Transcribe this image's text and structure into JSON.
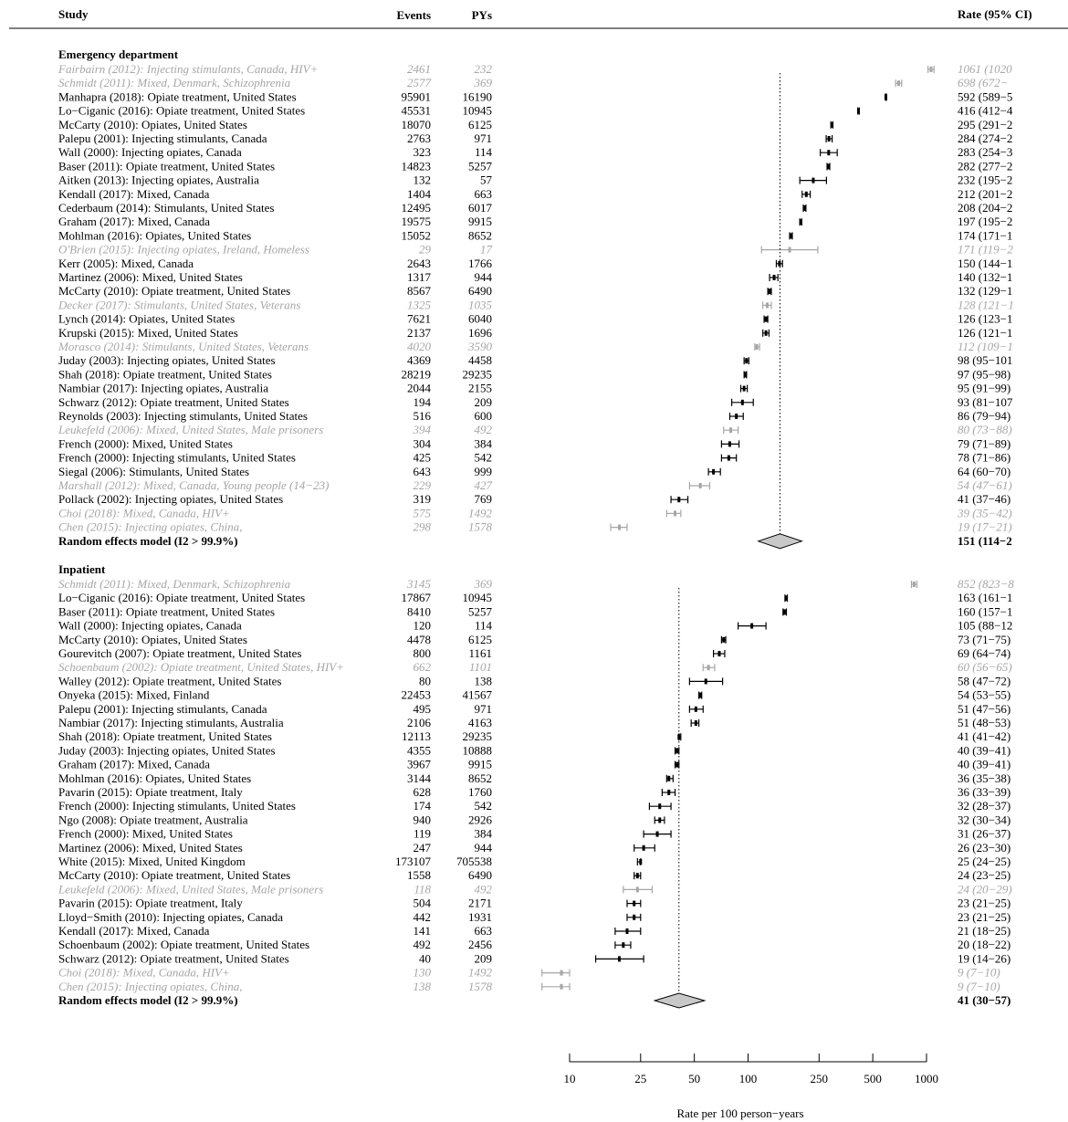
{
  "header": {
    "study": "Study",
    "events": "Events",
    "pys": "PYs",
    "rate": "Rate (95% CI)"
  },
  "chart_data": {
    "type": "forest",
    "xscale": "log",
    "xlim": [
      10,
      1000
    ],
    "xticks": [
      10,
      25,
      50,
      100,
      250,
      500,
      1000
    ],
    "xlabel": "Rate per 100 person−years",
    "colors": {
      "included": "#000000",
      "excluded": "#a6a6a6",
      "diamond_fill": "#c8c8c8"
    },
    "sections": [
      {
        "title": "Emergency department",
        "pooled_ref_line": 151,
        "studies": [
          {
            "label": "Fairbairn (2012): Injecting stimulants, Canada, HIV+",
            "events": "2461",
            "pys": "232",
            "rate": 1061,
            "lo": 1020,
            "hi": 1102,
            "text": "1061 (1020",
            "grey": true
          },
          {
            "label": "Schmidt (2011): Mixed, Denmark, Schizophrenia",
            "events": "2577",
            "pys": "369",
            "rate": 698,
            "lo": 672,
            "hi": 726,
            "text": "698 (672−",
            "grey": true
          },
          {
            "label": "Manhapra (2018): Opiate treatment, United States",
            "events": "95901",
            "pys": "16190",
            "rate": 592,
            "lo": 589,
            "hi": 596,
            "text": "592 (589−5",
            "grey": false
          },
          {
            "label": "Lo−Ciganic (2016): Opiate treatment, United States",
            "events": "45531",
            "pys": "10945",
            "rate": 416,
            "lo": 412,
            "hi": 420,
            "text": "416 (412−4",
            "grey": false
          },
          {
            "label": "McCarty (2010): Opiates, United States",
            "events": "18070",
            "pys": "6125",
            "rate": 295,
            "lo": 291,
            "hi": 299,
            "text": "295 (291−2",
            "grey": false
          },
          {
            "label": "Palepu (2001): Injecting stimulants, Canada",
            "events": "2763",
            "pys": "971",
            "rate": 284,
            "lo": 274,
            "hi": 296,
            "text": "284 (274−2",
            "grey": false
          },
          {
            "label": "Wall (2000): Injecting opiates, Canada",
            "events": "323",
            "pys": "114",
            "rate": 283,
            "lo": 254,
            "hi": 316,
            "text": "283 (254−3",
            "grey": false
          },
          {
            "label": "Baser (2011): Opiate treatment, United States",
            "events": "14823",
            "pys": "5257",
            "rate": 282,
            "lo": 277,
            "hi": 287,
            "text": "282 (277−2",
            "grey": false
          },
          {
            "label": "Aitken (2013): Injecting opiates, Australia",
            "events": "132",
            "pys": "57",
            "rate": 232,
            "lo": 195,
            "hi": 275,
            "text": "232 (195−2",
            "grey": false
          },
          {
            "label": "Kendall (2017): Mixed, Canada",
            "events": "1404",
            "pys": "663",
            "rate": 212,
            "lo": 201,
            "hi": 223,
            "text": "212 (201−2",
            "grey": false
          },
          {
            "label": "Cederbaum (2014): Stimulants, United States",
            "events": "12495",
            "pys": "6017",
            "rate": 208,
            "lo": 204,
            "hi": 211,
            "text": "208 (204−2",
            "grey": false
          },
          {
            "label": "Graham (2017): Mixed, Canada",
            "events": "19575",
            "pys": "9915",
            "rate": 197,
            "lo": 195,
            "hi": 200,
            "text": "197 (195−2",
            "grey": false
          },
          {
            "label": "Mohlman (2016): Opiates, United States",
            "events": "15052",
            "pys": "8652",
            "rate": 174,
            "lo": 171,
            "hi": 177,
            "text": "174 (171−1",
            "grey": false
          },
          {
            "label": "O'Brien (2015): Injecting opiates, Ireland, Homeless",
            "events": "29",
            "pys": "17",
            "rate": 171,
            "lo": 119,
            "hi": 246,
            "text": "171 (119−2",
            "grey": true
          },
          {
            "label": "Kerr (2005): Mixed, Canada",
            "events": "2643",
            "pys": "1766",
            "rate": 150,
            "lo": 144,
            "hi": 156,
            "text": "150 (144−1",
            "grey": false
          },
          {
            "label": "Martinez (2006): Mixed, United States",
            "events": "1317",
            "pys": "944",
            "rate": 140,
            "lo": 132,
            "hi": 147,
            "text": "140 (132−1",
            "grey": false
          },
          {
            "label": "McCarty (2010): Opiate treatment, United States",
            "events": "8567",
            "pys": "6490",
            "rate": 132,
            "lo": 129,
            "hi": 135,
            "text": "132 (129−1",
            "grey": false
          },
          {
            "label": "Decker (2017): Stimulants, United States, Veterans",
            "events": "1325",
            "pys": "1035",
            "rate": 128,
            "lo": 121,
            "hi": 135,
            "text": "128 (121−1",
            "grey": true
          },
          {
            "label": "Lynch (2014): Opiates, United States",
            "events": "7621",
            "pys": "6040",
            "rate": 126,
            "lo": 123,
            "hi": 129,
            "text": "126 (123−1",
            "grey": false
          },
          {
            "label": "Krupski (2015): Mixed, United States",
            "events": "2137",
            "pys": "1696",
            "rate": 126,
            "lo": 121,
            "hi": 131,
            "text": "126 (121−1",
            "grey": false
          },
          {
            "label": "Morasco (2014): Stimulants, United States, Veterans",
            "events": "4020",
            "pys": "3590",
            "rate": 112,
            "lo": 109,
            "hi": 116,
            "text": "112 (109−1",
            "grey": true
          },
          {
            "label": "Juday (2003): Injecting opiates, United States",
            "events": "4369",
            "pys": "4458",
            "rate": 98,
            "lo": 95,
            "hi": 101,
            "text": "98 (95−101",
            "grey": false
          },
          {
            "label": "Shah (2018): Opiate treatment, United States",
            "events": "28219",
            "pys": "29235",
            "rate": 97,
            "lo": 95,
            "hi": 98,
            "text": "97 (95−98)",
            "grey": false
          },
          {
            "label": "Nambiar (2017): Injecting opiates, Australia",
            "events": "2044",
            "pys": "2155",
            "rate": 95,
            "lo": 91,
            "hi": 99,
            "text": "95 (91−99)",
            "grey": false
          },
          {
            "label": "Schwarz (2012): Opiate treatment, United States",
            "events": "194",
            "pys": "209",
            "rate": 93,
            "lo": 81,
            "hi": 107,
            "text": "93 (81−107",
            "grey": false
          },
          {
            "label": "Reynolds (2003): Injecting stimulants, United States",
            "events": "516",
            "pys": "600",
            "rate": 86,
            "lo": 79,
            "hi": 94,
            "text": "86 (79−94)",
            "grey": false
          },
          {
            "label": "Leukefeld (2006): Mixed, United States, Male prisoners",
            "events": "394",
            "pys": "492",
            "rate": 80,
            "lo": 73,
            "hi": 88,
            "text": "80 (73−88)",
            "grey": true
          },
          {
            "label": "French (2000): Mixed, United States",
            "events": "304",
            "pys": "384",
            "rate": 79,
            "lo": 71,
            "hi": 89,
            "text": "79 (71−89)",
            "grey": false
          },
          {
            "label": "French (2000): Injecting stimulants, United States",
            "events": "425",
            "pys": "542",
            "rate": 78,
            "lo": 71,
            "hi": 86,
            "text": "78 (71−86)",
            "grey": false
          },
          {
            "label": "Siegal (2006): Stimulants, United States",
            "events": "643",
            "pys": "999",
            "rate": 64,
            "lo": 60,
            "hi": 70,
            "text": "64 (60−70)",
            "grey": false
          },
          {
            "label": "Marshall (2012): Mixed, Canada, Young people (14−23)",
            "events": "229",
            "pys": "427",
            "rate": 54,
            "lo": 47,
            "hi": 61,
            "text": "54 (47−61)",
            "grey": true
          },
          {
            "label": "Pollack (2002): Injecting opiates, United States",
            "events": "319",
            "pys": "769",
            "rate": 41,
            "lo": 37,
            "hi": 46,
            "text": "41 (37−46)",
            "grey": false
          },
          {
            "label": "Choi (2018): Mixed, Canada, HIV+",
            "events": "575",
            "pys": "1492",
            "rate": 39,
            "lo": 35,
            "hi": 42,
            "text": "39 (35−42)",
            "grey": true
          },
          {
            "label": "Chen (2015): Injecting opiates, China,",
            "events": "298",
            "pys": "1578",
            "rate": 19,
            "lo": 17,
            "hi": 21,
            "text": "19 (17−21)",
            "grey": true
          }
        ],
        "pooled": {
          "label": "Random effects model (I2 > 99.9%)",
          "rate": 151,
          "lo": 114,
          "hi": 200,
          "text": "151 (114−2"
        }
      },
      {
        "title": "Inpatient",
        "pooled_ref_line": 41,
        "studies": [
          {
            "label": "Schmidt (2011): Mixed, Denmark, Schizophrenia",
            "events": "3145",
            "pys": "369",
            "rate": 852,
            "lo": 823,
            "hi": 883,
            "text": "852 (823−8",
            "grey": true
          },
          {
            "label": "Lo−Ciganic (2016): Opiate treatment, United States",
            "events": "17867",
            "pys": "10945",
            "rate": 163,
            "lo": 161,
            "hi": 166,
            "text": "163 (161−1",
            "grey": false
          },
          {
            "label": "Baser (2011): Opiate treatment, United States",
            "events": "8410",
            "pys": "5257",
            "rate": 160,
            "lo": 157,
            "hi": 164,
            "text": "160 (157−1",
            "grey": false
          },
          {
            "label": "Wall (2000): Injecting opiates, Canada",
            "events": "120",
            "pys": "114",
            "rate": 105,
            "lo": 88,
            "hi": 126,
            "text": "105 (88−12",
            "grey": false
          },
          {
            "label": "McCarty (2010): Opiates, United States",
            "events": "4478",
            "pys": "6125",
            "rate": 73,
            "lo": 71,
            "hi": 75,
            "text": "73 (71−75)",
            "grey": false
          },
          {
            "label": "Gourevitch (2007): Opiate treatment, United States",
            "events": "800",
            "pys": "1161",
            "rate": 69,
            "lo": 64,
            "hi": 74,
            "text": "69 (64−74)",
            "grey": false
          },
          {
            "label": "Schoenbaum (2002): Opiate treatment, United States, HIV+",
            "events": "662",
            "pys": "1101",
            "rate": 60,
            "lo": 56,
            "hi": 65,
            "text": "60 (56−65)",
            "grey": true
          },
          {
            "label": "Walley (2012): Opiate treatment, United States",
            "events": "80",
            "pys": "138",
            "rate": 58,
            "lo": 47,
            "hi": 72,
            "text": "58 (47−72)",
            "grey": false
          },
          {
            "label": "Onyeka (2015): Mixed, Finland",
            "events": "22453",
            "pys": "41567",
            "rate": 54,
            "lo": 53,
            "hi": 55,
            "text": "54 (53−55)",
            "grey": false
          },
          {
            "label": "Palepu (2001): Injecting stimulants, Canada",
            "events": "495",
            "pys": "971",
            "rate": 51,
            "lo": 47,
            "hi": 56,
            "text": "51 (47−56)",
            "grey": false
          },
          {
            "label": "Nambiar (2017): Injecting stimulants, Australia",
            "events": "2106",
            "pys": "4163",
            "rate": 51,
            "lo": 48,
            "hi": 53,
            "text": "51 (48−53)",
            "grey": false
          },
          {
            "label": "Shah (2018): Opiate treatment, United States",
            "events": "12113",
            "pys": "29235",
            "rate": 41,
            "lo": 41,
            "hi": 42,
            "text": "41 (41−42)",
            "grey": false
          },
          {
            "label": "Juday (2003): Injecting opiates, United States",
            "events": "4355",
            "pys": "10888",
            "rate": 40,
            "lo": 39,
            "hi": 41,
            "text": "40 (39−41)",
            "grey": false
          },
          {
            "label": "Graham (2017): Mixed, Canada",
            "events": "3967",
            "pys": "9915",
            "rate": 40,
            "lo": 39,
            "hi": 41,
            "text": "40 (39−41)",
            "grey": false
          },
          {
            "label": "Mohlman (2016): Opiates, United States",
            "events": "3144",
            "pys": "8652",
            "rate": 36,
            "lo": 35,
            "hi": 38,
            "text": "36 (35−38)",
            "grey": false
          },
          {
            "label": "Pavarin (2015): Opiate treatment, Italy",
            "events": "628",
            "pys": "1760",
            "rate": 36,
            "lo": 33,
            "hi": 39,
            "text": "36 (33−39)",
            "grey": false
          },
          {
            "label": "French (2000): Injecting stimulants, United States",
            "events": "174",
            "pys": "542",
            "rate": 32,
            "lo": 28,
            "hi": 37,
            "text": "32 (28−37)",
            "grey": false
          },
          {
            "label": "Ngo (2008): Opiate treatment, Australia",
            "events": "940",
            "pys": "2926",
            "rate": 32,
            "lo": 30,
            "hi": 34,
            "text": "32 (30−34)",
            "grey": false
          },
          {
            "label": "French (2000): Mixed, United States",
            "events": "119",
            "pys": "384",
            "rate": 31,
            "lo": 26,
            "hi": 37,
            "text": "31 (26−37)",
            "grey": false
          },
          {
            "label": "Martinez (2006): Mixed, United States",
            "events": "247",
            "pys": "944",
            "rate": 26,
            "lo": 23,
            "hi": 30,
            "text": "26 (23−30)",
            "grey": false
          },
          {
            "label": "White (2015): Mixed, United Kingdom",
            "events": "173107",
            "pys": "705538",
            "rate": 25,
            "lo": 24,
            "hi": 25,
            "text": "25 (24−25)",
            "grey": false
          },
          {
            "label": "McCarty (2010): Opiate treatment, United States",
            "events": "1558",
            "pys": "6490",
            "rate": 24,
            "lo": 23,
            "hi": 25,
            "text": "24 (23−25)",
            "grey": false
          },
          {
            "label": "Leukefeld (2006): Mixed, United States, Male prisoners",
            "events": "118",
            "pys": "492",
            "rate": 24,
            "lo": 20,
            "hi": 29,
            "text": "24 (20−29)",
            "grey": true
          },
          {
            "label": "Pavarin (2015): Opiate treatment, Italy",
            "events": "504",
            "pys": "2171",
            "rate": 23,
            "lo": 21,
            "hi": 25,
            "text": "23 (21−25)",
            "grey": false
          },
          {
            "label": "Lloyd−Smith (2010): Injecting opiates, Canada",
            "events": "442",
            "pys": "1931",
            "rate": 23,
            "lo": 21,
            "hi": 25,
            "text": "23 (21−25)",
            "grey": false
          },
          {
            "label": "Kendall (2017): Mixed, Canada",
            "events": "141",
            "pys": "663",
            "rate": 21,
            "lo": 18,
            "hi": 25,
            "text": "21 (18−25)",
            "grey": false
          },
          {
            "label": "Schoenbaum (2002): Opiate treatment, United States",
            "events": "492",
            "pys": "2456",
            "rate": 20,
            "lo": 18,
            "hi": 22,
            "text": "20 (18−22)",
            "grey": false
          },
          {
            "label": "Schwarz (2012): Opiate treatment, United States",
            "events": "40",
            "pys": "209",
            "rate": 19,
            "lo": 14,
            "hi": 26,
            "text": "19 (14−26)",
            "grey": false
          },
          {
            "label": "Choi (2018): Mixed, Canada, HIV+",
            "events": "130",
            "pys": "1492",
            "rate": 9,
            "lo": 7,
            "hi": 10,
            "text": "9 (7−10)",
            "grey": true
          },
          {
            "label": "Chen (2015): Injecting opiates, China,",
            "events": "138",
            "pys": "1578",
            "rate": 9,
            "lo": 7,
            "hi": 10,
            "text": "9 (7−10)",
            "grey": true
          }
        ],
        "pooled": {
          "label": "Random effects model (I2 > 99.9%)",
          "rate": 41,
          "lo": 30,
          "hi": 57,
          "text": "41 (30−57)"
        }
      }
    ]
  }
}
